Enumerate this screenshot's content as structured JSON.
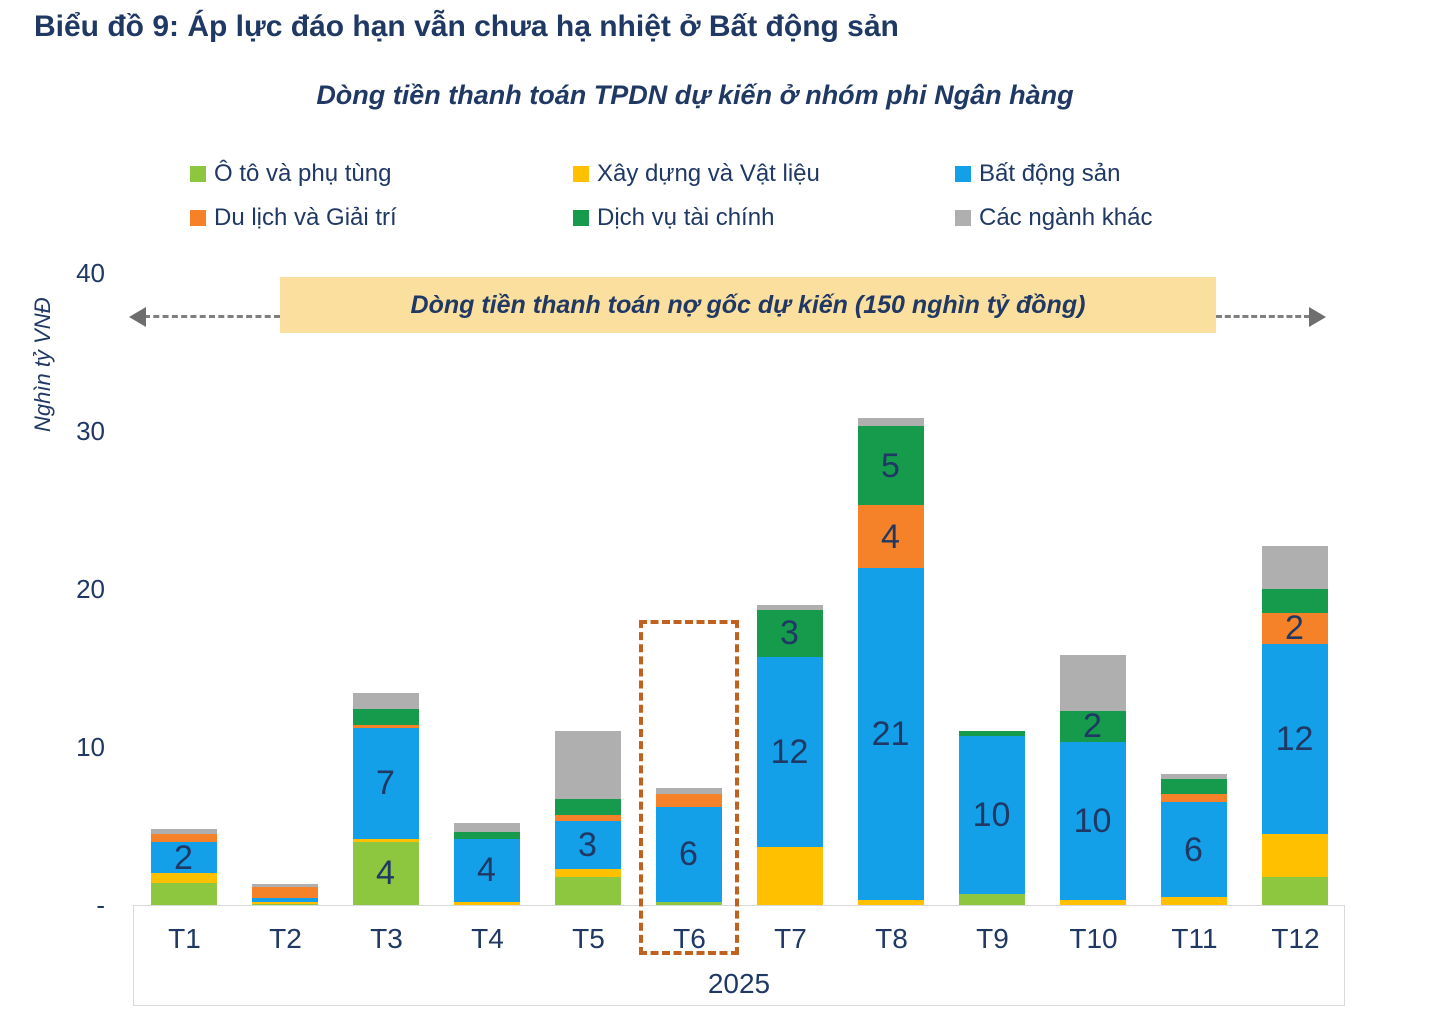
{
  "page": {
    "figure_label": "Biểu đồ 9: Áp lực đáo hạn vẫn chưa hạ nhiệt ở Bất động sản"
  },
  "colors": {
    "navy_text": "#1F3864",
    "banner_bg": "#FBDF9E",
    "arrow_gray": "#7F7F7F",
    "highlight_orange": "#C0611F",
    "axis_border": "#D9D9D9"
  },
  "chart_data": {
    "type": "bar",
    "stacked": true,
    "title": "Dòng tiền thanh toán TPDN dự kiến ở nhóm phi Ngân hàng",
    "ylabel": "Nghìn tỷ VNĐ",
    "ylim": [
      0,
      40
    ],
    "yticks": [
      {
        "value": 40,
        "label": "40"
      },
      {
        "value": 30,
        "label": "30"
      },
      {
        "value": 20,
        "label": "20"
      },
      {
        "value": 10,
        "label": "10"
      },
      {
        "value": 0,
        "label": "-"
      }
    ],
    "grid": false,
    "legend_position": "top",
    "categories": [
      "T1",
      "T2",
      "T3",
      "T4",
      "T5",
      "T6",
      "T7",
      "T8",
      "T9",
      "T10",
      "T11",
      "T12"
    ],
    "x_group_label": "2025",
    "series": [
      {
        "name": "Ô tô và phụ tùng",
        "color": "#8DC63F",
        "values": [
          1.4,
          0.05,
          4,
          0,
          1.8,
          0.2,
          0,
          0,
          0.7,
          0,
          0,
          1.8
        ],
        "labels": [
          "",
          "",
          "4",
          "",
          "",
          "",
          "",
          "",
          "",
          "",
          "",
          ""
        ]
      },
      {
        "name": "Xây dựng và Vật liệu",
        "color": "#FFC000",
        "values": [
          0.6,
          0.15,
          0.2,
          0.2,
          0.5,
          0,
          3.7,
          0.3,
          0,
          0.3,
          0.5,
          2.7
        ],
        "labels": [
          "",
          "",
          "",
          "",
          "",
          "",
          "",
          "",
          "",
          "",
          "",
          ""
        ]
      },
      {
        "name": "Bất động sản",
        "color": "#14A0E8",
        "values": [
          2,
          0.25,
          7,
          4,
          3,
          6,
          12,
          21,
          10,
          10,
          6,
          12
        ],
        "labels": [
          "2",
          "",
          "7",
          "4",
          "3",
          "6",
          "12",
          "21",
          "10",
          "10",
          "6",
          "12"
        ]
      },
      {
        "name": "Du lịch và Giải trí",
        "color": "#F58229",
        "values": [
          0.5,
          0.7,
          0.2,
          0,
          0.4,
          0.8,
          0,
          4,
          0,
          0,
          0.5,
          2
        ],
        "labels": [
          "",
          "",
          "",
          "",
          "",
          "",
          "",
          "4",
          "",
          "",
          "",
          "2"
        ]
      },
      {
        "name": "Dịch vụ tài chính",
        "color": "#169B4D",
        "values": [
          0,
          0,
          1,
          0.4,
          1,
          0,
          3,
          5,
          0.3,
          2,
          1,
          1.5
        ],
        "labels": [
          "",
          "",
          "",
          "",
          "",
          "",
          "3",
          "5",
          "",
          "2",
          "",
          ""
        ]
      },
      {
        "name": "Các ngành khác",
        "color": "#AFAFAF",
        "values": [
          0.3,
          0.15,
          1,
          0.6,
          4.3,
          0.4,
          0.3,
          0.5,
          0,
          3.5,
          0.3,
          2.7
        ],
        "labels": [
          "",
          "",
          "",
          "",
          "",
          "",
          "",
          "",
          "",
          "",
          "",
          ""
        ]
      }
    ],
    "annotation": {
      "text": "Dòng tiền thanh toán nợ gốc dự kiến (150 nghìn tỷ đồng)",
      "bg_color": "#FBDF9E"
    },
    "highlight": {
      "category": "T6",
      "color": "#C0611F"
    }
  }
}
